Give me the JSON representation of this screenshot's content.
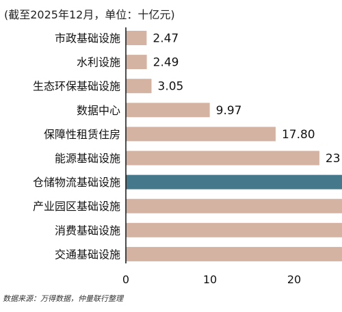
{
  "note": "(截至2025年12月，单位：十亿元)",
  "source": "数据来源：万得数据，仲量联行整理",
  "colors": {
    "bar": "#d4b3a3",
    "highlight": "#44788a",
    "axis": "#111111"
  },
  "chart_data": {
    "type": "bar",
    "orientation": "horizontal",
    "categories": [
      "市政基础设施",
      "水利设施",
      "生态环保基础设施",
      "数据中心",
      "保障性租赁住房",
      "能源基础设施",
      "仓储物流基础设施",
      "产业园区基础设施",
      "消费基础设施",
      "交通基础设施"
    ],
    "values": [
      2.47,
      2.49,
      3.05,
      9.97,
      17.8,
      23,
      26,
      26,
      26,
      26
    ],
    "value_labels": [
      "2.47",
      "2.49",
      "3.05",
      "9.97",
      "17.80",
      "23",
      "",
      "",
      "",
      ""
    ],
    "highlight_index": 6,
    "xticks": [
      0,
      10,
      20
    ],
    "xlim": [
      0,
      26
    ]
  }
}
